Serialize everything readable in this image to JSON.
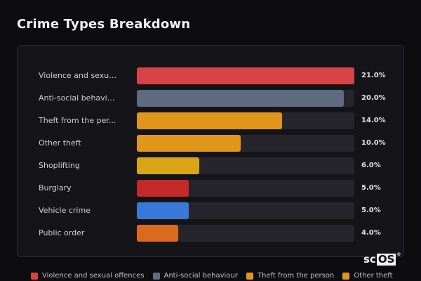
{
  "title": "Crime Types Breakdown",
  "chart_data": {
    "type": "bar",
    "orientation": "horizontal",
    "categories": [
      "Violence and sexual offences",
      "Anti-social behaviour",
      "Theft from the person",
      "Other theft",
      "Shoplifting",
      "Burglary",
      "Vehicle crime",
      "Public order"
    ],
    "category_labels": [
      "Violence and sexua...",
      "Anti-social behavi...",
      "Theft from the per...",
      "Other theft",
      "Shoplifting",
      "Burglary",
      "Vehicle crime",
      "Public order"
    ],
    "values": [
      21.0,
      20.0,
      14.0,
      10.0,
      6.0,
      5.0,
      5.0,
      4.0
    ],
    "value_labels": [
      "21.0%",
      "20.0%",
      "14.0%",
      "10.0%",
      "6.0%",
      "5.0%",
      "5.0%",
      "4.0%"
    ],
    "colors": [
      "#d94345",
      "#5f6b7e",
      "#e0961a",
      "#e0961a",
      "#d9a514",
      "#c42a2a",
      "#3a78d8",
      "#dc6a1c"
    ],
    "xlim": [
      0,
      21
    ],
    "grid": false,
    "legend_position": "bottom",
    "legend": [
      {
        "label": "Violence and sexual offences",
        "color": "#d94345"
      },
      {
        "label": "Anti-social behaviour",
        "color": "#5f6b7e"
      },
      {
        "label": "Theft from the person",
        "color": "#e0961a"
      },
      {
        "label": "Other theft",
        "color": "#e0961a"
      }
    ]
  },
  "logo": {
    "text": "sc",
    "box_text": "OS",
    "mark": "®"
  }
}
